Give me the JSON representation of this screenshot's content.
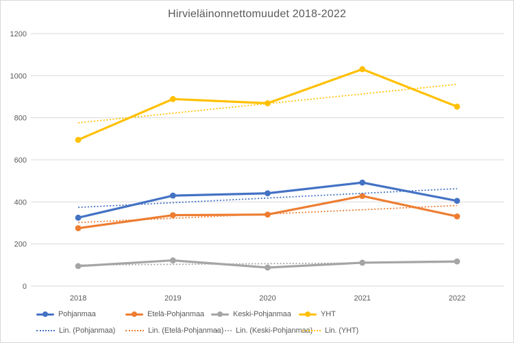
{
  "chart_data": {
    "type": "line",
    "title": "Hirvieläinonnettomuudet 2018-2022",
    "categories": [
      "2018",
      "2019",
      "2020",
      "2021",
      "2022"
    ],
    "series": [
      {
        "key": "pohjanmaa",
        "name": "Pohjanmaa",
        "color": "#4472C4",
        "values": [
          325,
          430,
          441,
          492,
          405
        ]
      },
      {
        "key": "etela-pohjanmaa",
        "name": "Etelä-Pohjanmaa",
        "color": "#ED7D31",
        "values": [
          275,
          337,
          340,
          428,
          331
        ]
      },
      {
        "key": "keski-pohjanmaa",
        "name": "Keski-Pohjanmaa",
        "color": "#A5A5A5",
        "values": [
          95,
          122,
          88,
          111,
          117
        ]
      },
      {
        "key": "yht",
        "name": "YHT",
        "color": "#FFC000",
        "values": [
          695,
          889,
          869,
          1031,
          853
        ]
      }
    ],
    "trendlines": [
      {
        "key": "pohjanmaa",
        "name": "Lin. (Pohjanmaa)",
        "color": "#4472C4",
        "start": 374,
        "end": 463
      },
      {
        "key": "etela-pohjanmaa",
        "name": "Lin. (Etelä-Pohjanmaa)",
        "color": "#ED7D31",
        "start": 302,
        "end": 383
      },
      {
        "key": "keski-pohjanmaa",
        "name": "Lin. (Keski-Pohjanmaa)",
        "color": "#A5A5A5",
        "start": 100,
        "end": 113
      },
      {
        "key": "yht",
        "name": "Lin. (YHT)",
        "color": "#FFC000",
        "start": 776,
        "end": 959
      }
    ],
    "y_axis": {
      "min": 0,
      "max": 1200,
      "step": 200,
      "tick_labels": [
        "0",
        "200",
        "400",
        "600",
        "800",
        "1000",
        "1200"
      ]
    },
    "grid": true,
    "legend_position": "bottom",
    "styles": {
      "gridline_color": "#D9D9D9",
      "text_color": "#595959",
      "background": "#FFFFFF",
      "border_color": "#D9D9D9"
    }
  }
}
